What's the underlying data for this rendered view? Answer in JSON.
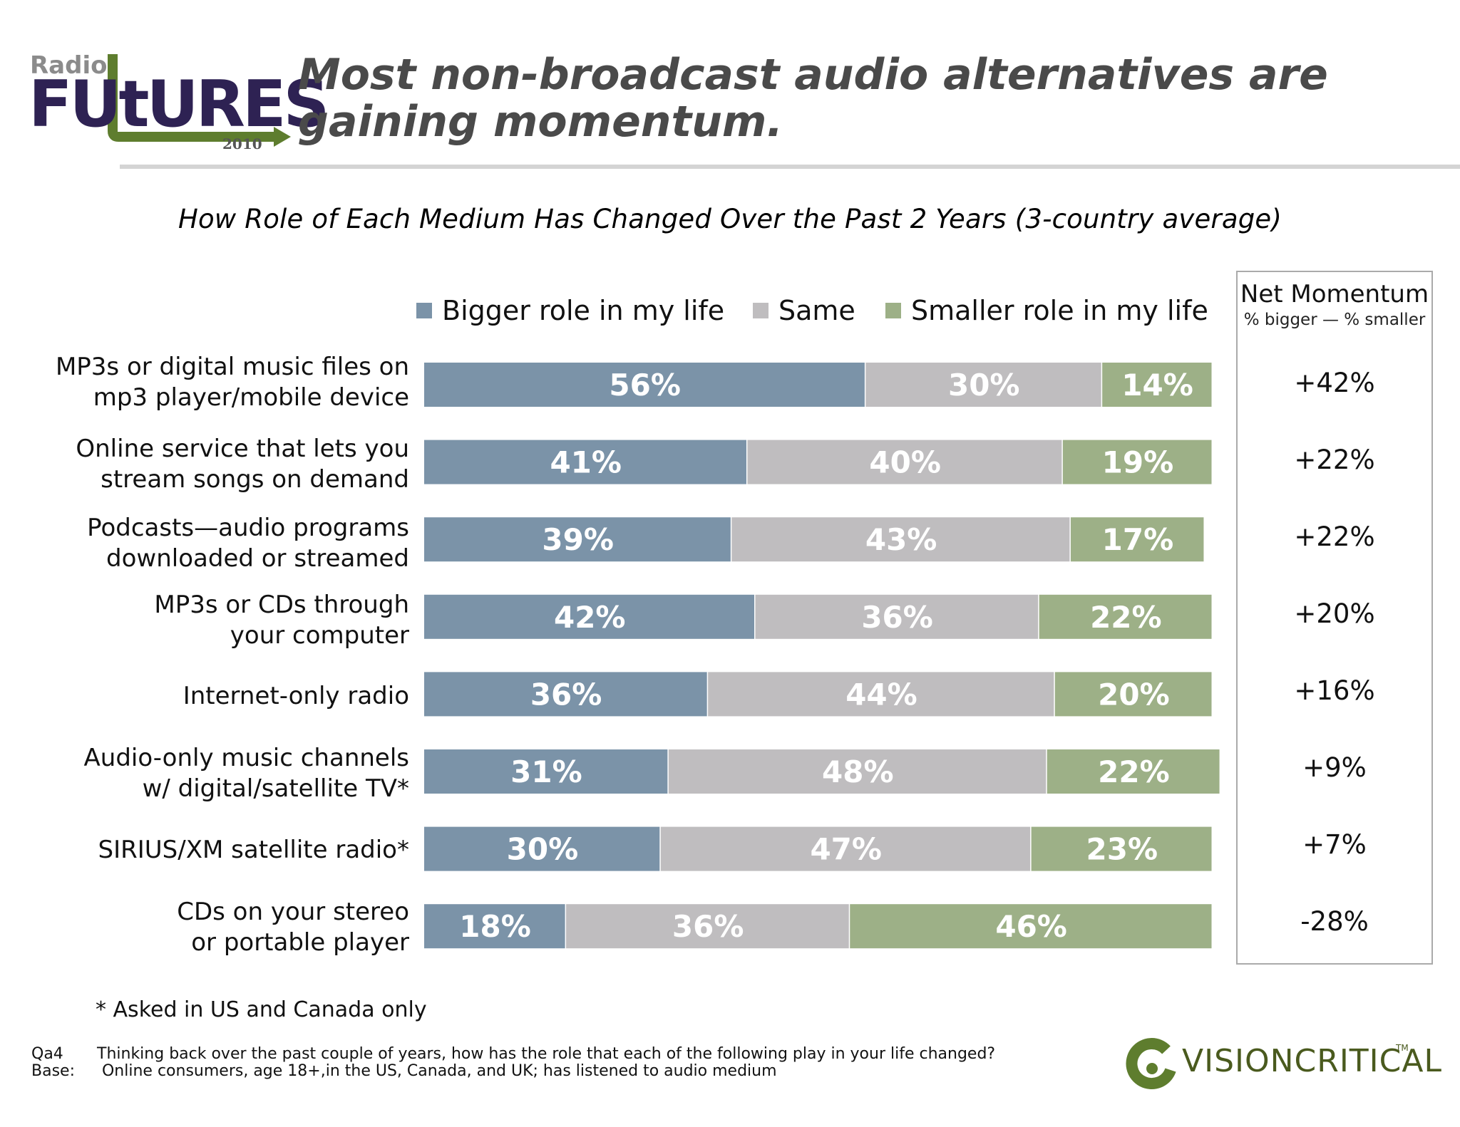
{
  "header": {
    "logo_top": "Radio",
    "logo_main": "FUtURES",
    "logo_year": "2010",
    "title": "Most non-broadcast audio alternatives are gaining momentum."
  },
  "net_momentum": {
    "title": "Net Momentum",
    "subtitle": "% bigger — % smaller",
    "values": [
      "+42%",
      "+22%",
      "+22%",
      "+20%",
      "+16%",
      "+9%",
      "+7%",
      "-28%"
    ]
  },
  "chart_data": {
    "type": "bar",
    "orientation": "horizontal",
    "stacked": true,
    "title": "How Role of Each Medium Has Changed Over the Past 2 Years (3-country average)",
    "legend_position": "top",
    "categories": [
      [
        "MP3s or digital music files on",
        "mp3 player/mobile device"
      ],
      [
        "Online service that lets you",
        "stream songs on demand"
      ],
      [
        "Podcasts—audio programs",
        "downloaded or streamed"
      ],
      [
        "MP3s or CDs through",
        "your computer"
      ],
      [
        "Internet-only radio"
      ],
      [
        "Audio-only music channels",
        "w/ digital/satellite TV*"
      ],
      [
        "SIRIUS/XM satellite radio*"
      ],
      [
        "CDs on your stereo",
        "or portable player"
      ]
    ],
    "series": [
      {
        "name": "Bigger role in my life",
        "color": "#7b93a8",
        "values": [
          56,
          41,
          39,
          42,
          36,
          31,
          30,
          18
        ],
        "labels": [
          "56%",
          "41%",
          "39%",
          "42%",
          "36%",
          "31%",
          "30%",
          "18%"
        ]
      },
      {
        "name": "Same",
        "color": "#bfbdbf",
        "values": [
          30,
          40,
          43,
          36,
          44,
          48,
          47,
          36
        ],
        "labels": [
          "30%",
          "40%",
          "43%",
          "36%",
          "44%",
          "48%",
          "47%",
          "36%"
        ]
      },
      {
        "name": "Smaller role in my life",
        "color": "#9db087",
        "values": [
          14,
          19,
          17,
          22,
          20,
          22,
          23,
          46
        ],
        "labels": [
          "14%",
          "19%",
          "17%",
          "22%",
          "20%",
          "22%",
          "23%",
          "46%"
        ]
      }
    ],
    "xlim": [
      0,
      100
    ],
    "grid": false
  },
  "notes": {
    "footnote": "* Asked in US and Canada only",
    "q_key": "Qa4",
    "q_text": "Thinking back over the past couple of years, how has the role that each of the following  play in your life changed?",
    "base_key": "Base:",
    "base_text": " Online consumers, age 18+,in the US, Canada, and UK; has listened to audio medium"
  },
  "brand": {
    "name": "VISIONCRITICAL",
    "tm": "TM"
  }
}
